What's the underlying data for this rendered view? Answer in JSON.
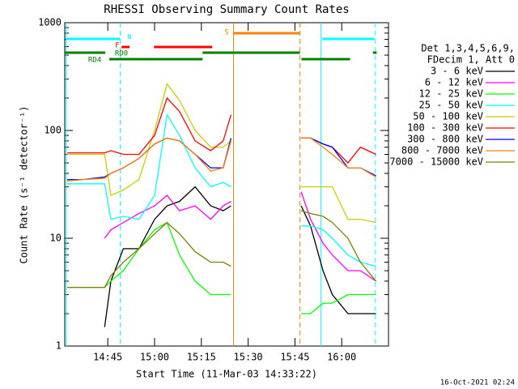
{
  "chart_data": {
    "type": "line",
    "title": "RHESSI Observing Summary Count Rates",
    "xlabel": "Start Time (11-Mar-03 14:33:22)",
    "ylabel": "Count Rate (s⁻¹ detector⁻¹)",
    "legend_header": [
      "Det 1,3,4,5,6,9,",
      "FDecim 1, Att 0"
    ],
    "timestamp": "16-Oct-2021 02:24",
    "log_y": true,
    "xlim": [
      871.2,
      975
    ],
    "ylim": [
      1,
      1000
    ],
    "yticks": [
      1,
      10,
      100,
      1000
    ],
    "xticks": [
      {
        "value": 885,
        "label": "14:45"
      },
      {
        "value": 900,
        "label": "15:00"
      },
      {
        "value": 915,
        "label": "15:15"
      },
      {
        "value": 930,
        "label": "15:30"
      },
      {
        "value": 945,
        "label": "15:45"
      },
      {
        "value": 960,
        "label": "16:00"
      }
    ],
    "x": [
      872,
      877,
      884,
      886,
      890,
      895,
      900,
      904,
      908,
      913,
      918,
      922,
      924.5,
      935,
      947,
      950,
      954,
      957,
      962,
      966,
      971
    ],
    "series": [
      {
        "name": "3 - 6 keV",
        "color": "#000000",
        "values": [
          null,
          null,
          1.5,
          4,
          8,
          8,
          15,
          20,
          22,
          30,
          20,
          18,
          20,
          null,
          20,
          13,
          5,
          3,
          2,
          2,
          2
        ]
      },
      {
        "name": "6 - 12 keV",
        "color": "#ff00ff",
        "values": [
          null,
          null,
          10,
          12,
          14,
          17,
          20,
          25,
          18,
          20,
          15,
          20,
          22,
          null,
          27,
          15,
          9,
          7,
          5,
          5,
          4
        ]
      },
      {
        "name": "12 - 25 keV",
        "color": "#00ff00",
        "values": [
          3.5,
          3.5,
          3.5,
          4,
          5,
          8,
          12,
          14,
          7,
          4,
          3,
          3,
          3,
          null,
          2,
          2,
          2.5,
          2.5,
          3,
          3,
          3
        ]
      },
      {
        "name": "25 - 50 keV",
        "color": "#00ffff",
        "values": [
          32,
          32,
          32,
          15,
          16,
          15,
          25,
          140,
          90,
          45,
          30,
          33,
          30,
          null,
          13,
          13,
          12,
          10,
          7,
          6,
          5.5
        ]
      },
      {
        "name": "50 - 100 keV",
        "color": "#cccc00",
        "values": [
          60,
          60,
          60,
          25,
          28,
          35,
          100,
          270,
          190,
          100,
          70,
          70,
          80,
          null,
          30,
          30,
          30,
          30,
          15,
          15,
          14
        ]
      },
      {
        "name": "100 - 300 keV",
        "color": "#ff0000",
        "values": [
          62,
          62,
          62,
          65,
          60,
          60,
          90,
          200,
          150,
          80,
          65,
          80,
          140,
          null,
          85,
          85,
          75,
          70,
          50,
          70,
          60
        ]
      },
      {
        "name": "300 - 800 keV",
        "color": "#0000ff",
        "values": [
          35,
          35,
          37,
          40,
          45,
          55,
          75,
          85,
          80,
          60,
          45,
          45,
          85,
          null,
          85,
          85,
          75,
          70,
          45,
          45,
          38
        ]
      },
      {
        "name": "800 - 7000 keV",
        "color": "#ff8000",
        "values": [
          34,
          35,
          36,
          40,
          45,
          55,
          75,
          85,
          80,
          60,
          42,
          45,
          80,
          null,
          85,
          85,
          70,
          60,
          45,
          45,
          37
        ]
      },
      {
        "name": "7000 - 15000 keV",
        "color": "#808000",
        "values": [
          3.5,
          3.5,
          3.5,
          4.5,
          6,
          8,
          11,
          14,
          11,
          7.5,
          6,
          6,
          5.5,
          null,
          18,
          17,
          16,
          14,
          10,
          6,
          4
        ]
      }
    ],
    "flags": [
      {
        "label": "S",
        "color": "#ff8000",
        "intervals": [
          [
            925.3,
            946.6
          ]
        ]
      },
      {
        "label": "N",
        "color": "#00ffff",
        "intervals": [
          [
            871.8,
            888.9
          ],
          [
            953.8,
            970.5
          ]
        ]
      },
      {
        "label": "F",
        "color": "#ff0000",
        "intervals": [
          [
            889.4,
            892
          ],
          [
            899.8,
            918.5
          ]
        ]
      },
      {
        "label": "RD0",
        "color": "#008000",
        "intervals": [
          [
            871.2,
            884.2
          ],
          [
            915.4,
            946.6
          ],
          [
            970,
            971.2
          ]
        ]
      },
      {
        "label": "RD4",
        "color": "#008000",
        "intervals": [
          [
            885.5,
            915.4
          ],
          [
            947.1,
            962.7
          ]
        ]
      }
    ],
    "vlines": [
      {
        "x": 871.7,
        "color": "#00ffff",
        "dashed": false
      },
      {
        "x": 889,
        "color": "#00ffff",
        "dashed": true
      },
      {
        "x": 925.3,
        "color": "#ff8000",
        "dashed": false
      },
      {
        "x": 946.6,
        "color": "#ff8000",
        "dashed": true
      },
      {
        "x": 953.3,
        "color": "#00ffff",
        "dashed": false
      },
      {
        "x": 970.8,
        "color": "#00ffff",
        "dashed": true
      }
    ]
  }
}
